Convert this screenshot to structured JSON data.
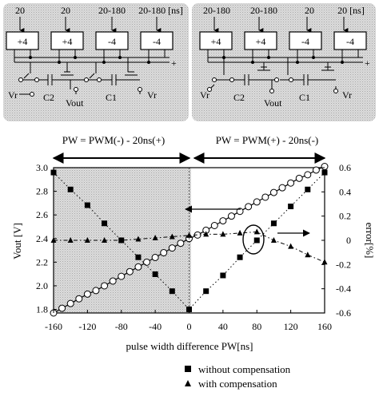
{
  "circuits": {
    "left": {
      "pulse_labels": [
        "20",
        "20",
        "20-180",
        "20-180 [ns]"
      ],
      "boxes": [
        "+4",
        "+4",
        "-4",
        "-4"
      ],
      "plus": "+",
      "vr_left": "Vr",
      "c2": "C2",
      "vout": "Vout",
      "c1": "C1",
      "vr_right": "Vr"
    },
    "right": {
      "pulse_labels": [
        "20-180",
        "20-180",
        "20",
        "20 [ns]"
      ],
      "boxes": [
        "+4",
        "+4",
        "-4",
        "-4"
      ],
      "plus": "+",
      "vr_left": "Vr",
      "c2": "C2",
      "vout": "Vout",
      "c1": "C1",
      "vr_right": "Vr"
    }
  },
  "regions": {
    "left_formula": "PW = PWM(-) - 20ns(+)",
    "right_formula": "PW = PWM(+) - 20ns(-)"
  },
  "chart_data": {
    "type": "scatter",
    "xlabel": "pulse width difference PW[ns]",
    "ylabel_left": "Vout [V]",
    "ylabel_right": "error[%]",
    "x_ticks": [
      "-160",
      "-120",
      "-80",
      "-40",
      "0",
      "40",
      "80",
      "120",
      "160"
    ],
    "yleft_ticks": [
      "3.0",
      "2.8",
      "2.6",
      "2.4",
      "2.2",
      "2.0",
      "1.8"
    ],
    "yright_ticks": [
      "0.6",
      "0.4",
      "0.2",
      "0",
      "-0.2",
      "-0.4",
      "-0.6"
    ],
    "xlim": [
      -160,
      160
    ],
    "ylim_left": [
      1.77,
      3.0
    ],
    "ylim_right": [
      -0.6,
      0.6
    ],
    "grid": false,
    "series": [
      {
        "name": "",
        "axis": "left",
        "marker": "open-circle",
        "line": "solid",
        "x": [
          -160,
          -150,
          -140,
          -130,
          -120,
          -110,
          -100,
          -90,
          -80,
          -70,
          -60,
          -50,
          -40,
          -30,
          -20,
          -10,
          0,
          10,
          20,
          30,
          40,
          50,
          60,
          70,
          80,
          90,
          100,
          110,
          120,
          130,
          140,
          150,
          160
        ],
        "y": [
          1.77,
          1.81,
          1.85,
          1.89,
          1.93,
          1.96,
          2.0,
          2.04,
          2.08,
          2.12,
          2.16,
          2.2,
          2.24,
          2.28,
          2.32,
          2.36,
          2.4,
          2.43,
          2.47,
          2.51,
          2.55,
          2.59,
          2.63,
          2.67,
          2.71,
          2.75,
          2.79,
          2.83,
          2.87,
          2.91,
          2.94,
          2.98,
          3.01
        ]
      },
      {
        "name": "without compensation",
        "axis": "right",
        "marker": "square",
        "line": "dotted",
        "x": [
          -160,
          -140,
          -120,
          -100,
          -80,
          -60,
          -40,
          -20,
          0,
          20,
          40,
          60,
          80,
          100,
          120,
          140,
          160
        ],
        "y": [
          0.56,
          0.42,
          0.29,
          0.14,
          0.0,
          -0.14,
          -0.28,
          -0.42,
          -0.57,
          -0.42,
          -0.29,
          -0.14,
          0.0,
          0.14,
          0.28,
          0.42,
          0.56
        ]
      },
      {
        "name": "with compensation",
        "axis": "right",
        "marker": "triangle",
        "line": "dash-dot",
        "x": [
          -160,
          -140,
          -120,
          -100,
          -80,
          -60,
          -40,
          -20,
          0,
          20,
          40,
          60,
          80,
          100,
          120,
          140,
          160
        ],
        "y": [
          0.0,
          0.0,
          0.0,
          0.0,
          0.0,
          0.01,
          0.02,
          0.03,
          0.04,
          0.05,
          0.05,
          0.06,
          0.07,
          0.0,
          -0.05,
          -0.12,
          -0.18
        ]
      }
    ],
    "legend": [
      {
        "marker": "square",
        "label": "without compensation"
      },
      {
        "marker": "triangle",
        "label": "with compensation"
      }
    ]
  }
}
